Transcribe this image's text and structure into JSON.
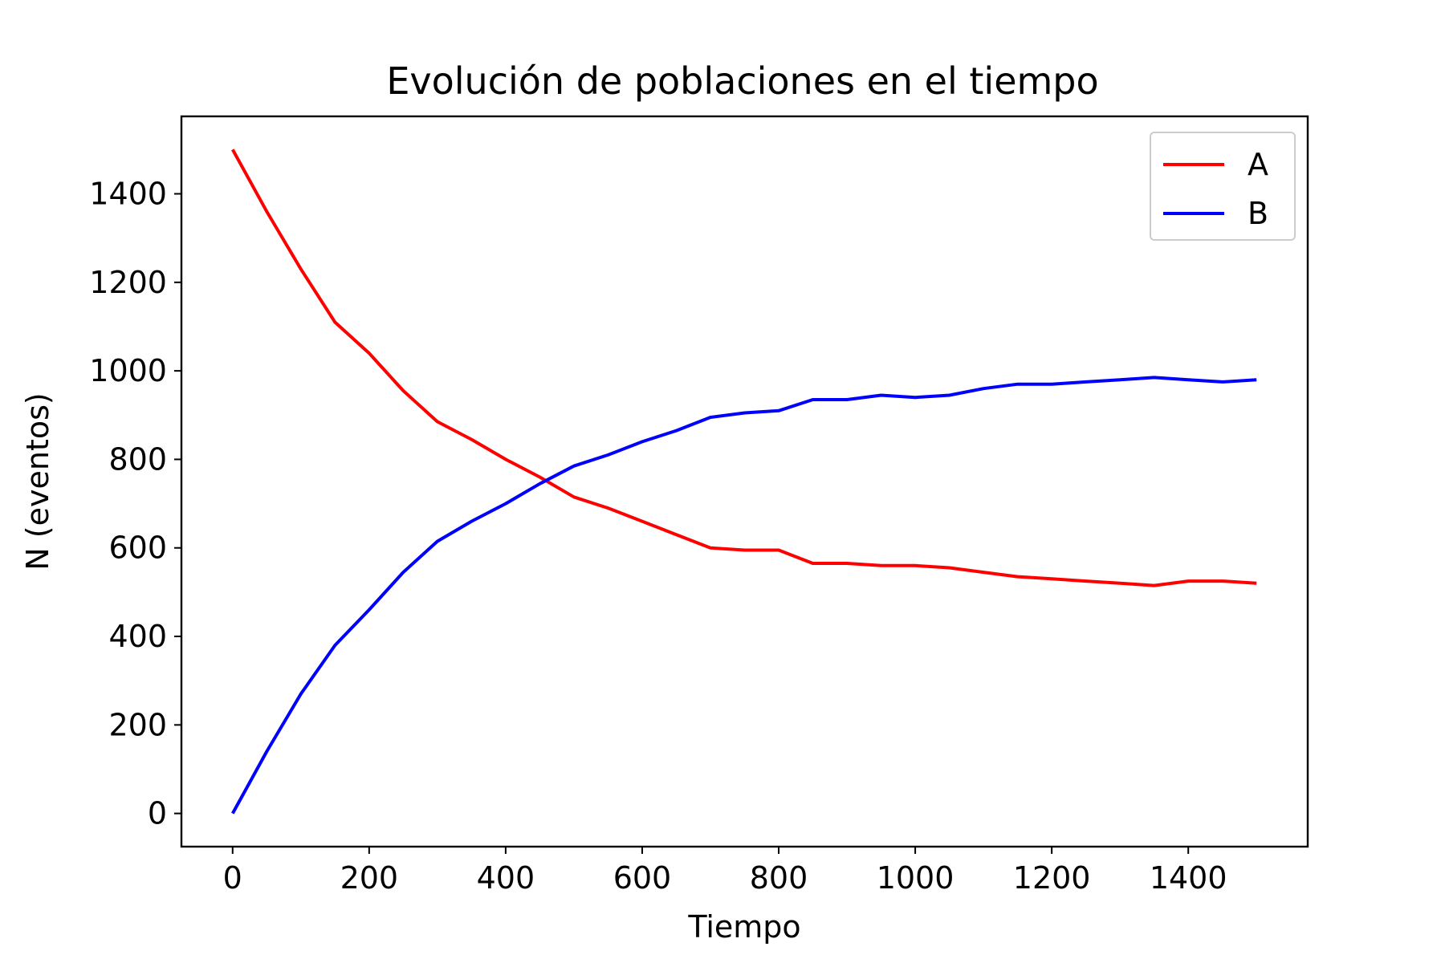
{
  "chart_data": {
    "type": "line",
    "title": "Evolución de poblaciones en el tiempo",
    "xlabel": "Tiempo",
    "ylabel": "N (eventos)",
    "xlim": [
      -75,
      1575
    ],
    "ylim": [
      -75,
      1575
    ],
    "xticks": [
      0,
      200,
      400,
      600,
      800,
      1000,
      1200,
      1400
    ],
    "yticks": [
      0,
      200,
      400,
      600,
      800,
      1000,
      1200,
      1400
    ],
    "xtick_labels": [
      "0",
      "200",
      "400",
      "600",
      "800",
      "1000",
      "1200",
      "1400"
    ],
    "ytick_labels": [
      "0",
      "200",
      "400",
      "600",
      "800",
      "1000",
      "1200",
      "1400"
    ],
    "grid": false,
    "legend_position": "upper right",
    "x": [
      0,
      50,
      100,
      150,
      200,
      250,
      300,
      350,
      400,
      450,
      500,
      550,
      600,
      650,
      700,
      750,
      800,
      850,
      900,
      950,
      1000,
      1050,
      1100,
      1150,
      1200,
      1250,
      1300,
      1350,
      1400,
      1450,
      1500
    ],
    "series": [
      {
        "name": "A",
        "color": "#ff0000",
        "values": [
          1500,
          1360,
          1230,
          1110,
          1040,
          955,
          885,
          845,
          800,
          760,
          715,
          690,
          660,
          630,
          600,
          595,
          595,
          565,
          565,
          560,
          560,
          555,
          545,
          535,
          530,
          525,
          520,
          515,
          525,
          525,
          520
        ]
      },
      {
        "name": "B",
        "color": "#0000ff",
        "values": [
          0,
          140,
          270,
          380,
          460,
          545,
          615,
          660,
          700,
          745,
          785,
          810,
          840,
          865,
          895,
          905,
          910,
          935,
          935,
          945,
          940,
          945,
          960,
          970,
          970,
          975,
          980,
          985,
          980,
          975,
          980
        ]
      }
    ]
  }
}
